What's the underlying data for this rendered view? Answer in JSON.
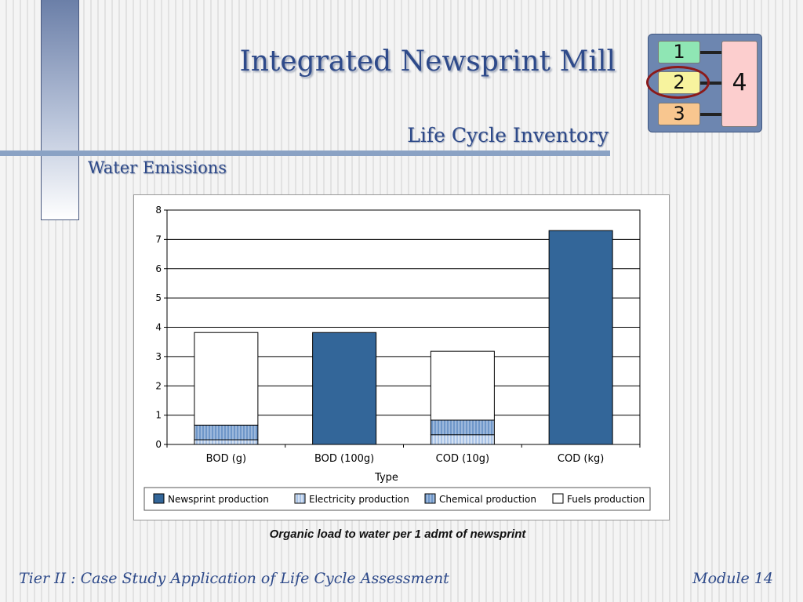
{
  "slide": {
    "title": "Integrated Newsprint Mill",
    "subtitle": "Life Cycle Inventory",
    "section": "Water Emissions",
    "caption": "Organic load to water per 1 admt of newsprint",
    "footer_left": "Tier II : Case Study Application of Life Cycle Assessment",
    "footer_right": "Module 14"
  },
  "diagram": {
    "boxes": [
      "1",
      "2",
      "3",
      "4"
    ],
    "colors": {
      "box1": "#8fe6b4",
      "box2": "#f7f39e",
      "box3": "#f8c68f",
      "box4": "#fccece",
      "highlight": "#8b1a1a"
    }
  },
  "chart_data": {
    "type": "bar",
    "stacked": true,
    "categories": [
      "BOD (g)",
      "BOD (100g)",
      "COD (10g)",
      "COD (kg)"
    ],
    "xlabel": "Type",
    "ylabel": "",
    "ylim": [
      0,
      8
    ],
    "yticks": [
      0,
      1,
      2,
      3,
      4,
      5,
      6,
      7,
      8
    ],
    "grid": true,
    "legend_position": "bottom",
    "series": [
      {
        "name": "Newsprint production",
        "values": [
          0,
          3.82,
          0,
          7.3
        ],
        "color": "#336699"
      },
      {
        "name": "Electricity production",
        "values": [
          0.16,
          0,
          0.33,
          0
        ],
        "color": "#a9c3e6"
      },
      {
        "name": "Chemical production",
        "values": [
          0.5,
          0,
          0.5,
          0
        ],
        "color": "#6f97c9"
      },
      {
        "name": "Fuels production",
        "values": [
          3.16,
          0,
          2.35,
          0
        ],
        "color": "#ffffff"
      }
    ]
  }
}
